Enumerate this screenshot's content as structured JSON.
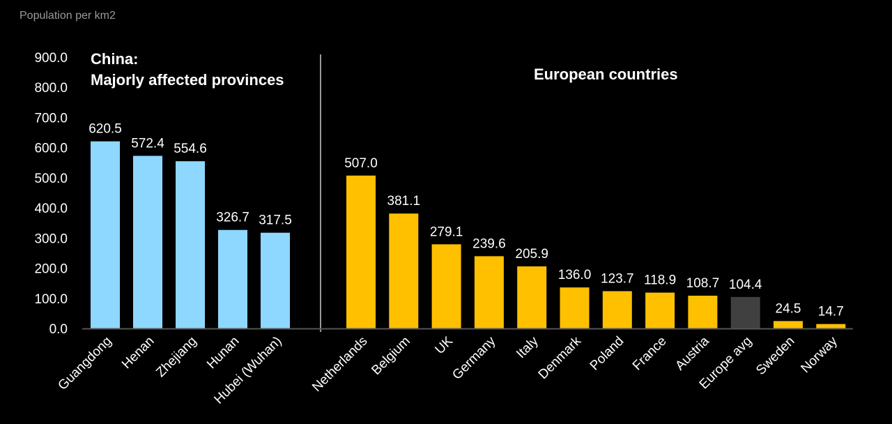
{
  "unit_label": "Population per km2",
  "panels": {
    "china_title_line1": "China:",
    "china_title_line2": "Majorly affected provinces",
    "europe_title": "European countries"
  },
  "colors": {
    "china": "#8ED7FF",
    "europe": "#FFC000",
    "average": "#404040",
    "background": "#000000",
    "axis": "#555555",
    "divider": "#ffffff"
  },
  "chart_data": {
    "type": "bar",
    "ylim": [
      0,
      900
    ],
    "yticks": [
      "0.0",
      "100.0",
      "200.0",
      "300.0",
      "400.0",
      "500.0",
      "600.0",
      "700.0",
      "800.0",
      "900.0"
    ],
    "grid": false,
    "groups": [
      {
        "name": "China: Majorly affected provinces",
        "categories": [
          "Guangdong",
          "Henan",
          "Zhejiang",
          "Hunan",
          "Hubei (Wuhan)"
        ],
        "values": [
          620.5,
          572.4,
          554.6,
          326.7,
          317.5
        ],
        "labels": [
          "620.5",
          "572.4",
          "554.6",
          "326.7",
          "317.5"
        ]
      },
      {
        "name": "European countries",
        "categories": [
          "Netherlands",
          "Belgium",
          "UK",
          "Germany",
          "Italy",
          "Denmark",
          "Poland",
          "France",
          "Austria",
          "Europe avg",
          "Sweden",
          "Norway"
        ],
        "values": [
          507.0,
          381.1,
          279.1,
          239.6,
          205.9,
          136.0,
          123.7,
          118.9,
          108.7,
          104.4,
          24.5,
          14.7
        ],
        "labels": [
          "507.0",
          "381.1",
          "279.1",
          "239.6",
          "205.9",
          "136.0",
          "123.7",
          "118.9",
          "108.7",
          "104.4",
          "24.5",
          "14.7"
        ]
      }
    ]
  }
}
